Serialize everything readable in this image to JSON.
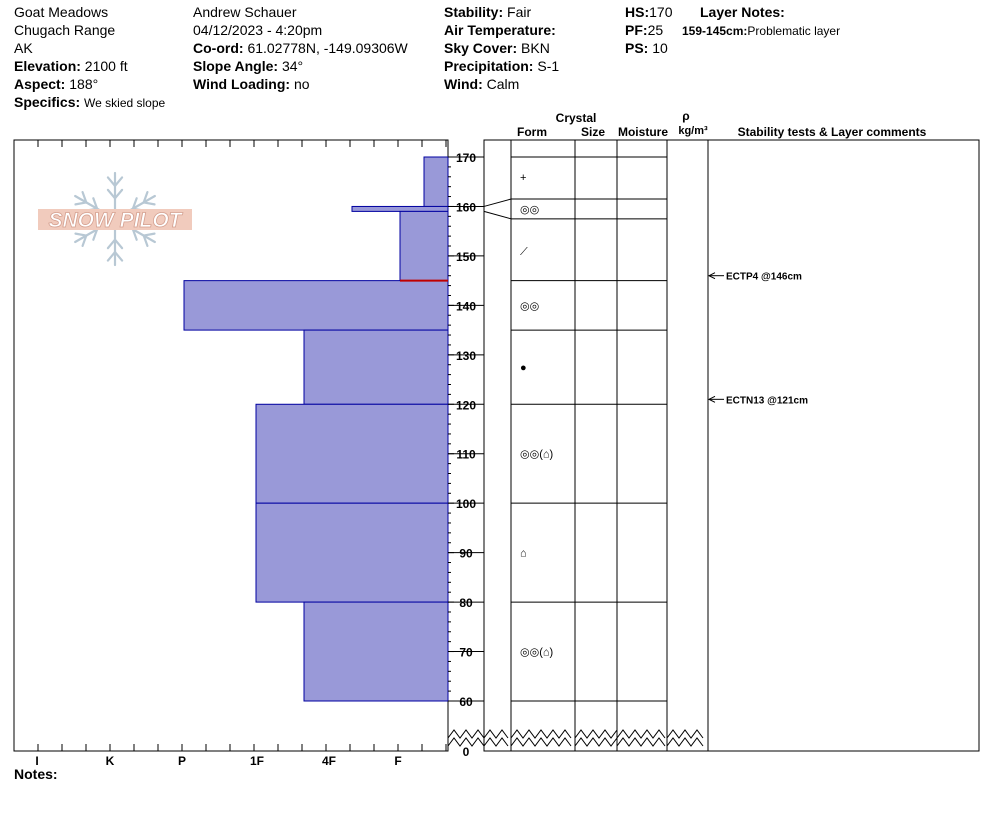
{
  "header": {
    "location": "Goat Meadows",
    "range": "Chugach Range",
    "state": "AK",
    "elevation_label": "Elevation:",
    "elevation_value": "2100 ft",
    "aspect_label": "Aspect:",
    "aspect_value": "188°",
    "specifics_label": "Specifics:",
    "specifics_value": "We skied slope",
    "observer": "Andrew Schauer",
    "datetime": "04/12/2023 - 4:20pm",
    "coord_label": "Co-ord:",
    "coord_value": "61.02778N, -149.09306W",
    "slope_label": "Slope Angle:",
    "slope_value": "34°",
    "wind_loading_label": "Wind Loading:",
    "wind_loading_value": "no",
    "stability_label": "Stability:",
    "stability_value": "Fair",
    "air_temp_label": "Air Temperature:",
    "air_temp_value": "",
    "sky_label": "Sky Cover:",
    "sky_value": "BKN",
    "precip_label": "Precipitation:",
    "precip_value": "S-1",
    "wind_label": "Wind:",
    "wind_value": "Calm",
    "hs_label": "HS:",
    "hs_value": "170",
    "pf_label": "PF:",
    "pf_value": "25",
    "ps_label": "PS:",
    "ps_value": "10",
    "layer_notes_label": "Layer Notes:",
    "layer_note_range": "159-145cm:",
    "layer_note_text": "Problematic layer",
    "notes_label": "Notes:"
  },
  "columns": {
    "crystal": "Crystal",
    "form": "Form",
    "size": "Size",
    "moisture": "Moisture",
    "rho": "ρ",
    "density_unit": "kg/m³",
    "stability_comments": "Stability tests & Layer comments"
  },
  "logo_text": "SNOW PILOT",
  "colors": {
    "layer_fill": "#9999d8",
    "layer_stroke": "#0000a0",
    "weak_layer_line": "#c00000"
  },
  "chart_data": {
    "type": "snow_profile",
    "hardness_scale": [
      "I",
      "K",
      "P",
      "1F",
      "4F",
      "F"
    ],
    "depth_ticks": [
      170,
      160,
      150,
      140,
      130,
      120,
      110,
      100,
      90,
      80,
      70,
      60,
      0
    ],
    "depth_range_cm": [
      0,
      170
    ],
    "layers": [
      {
        "top": 170,
        "bottom": 160,
        "hardness": 0.5
      },
      {
        "top": 160,
        "bottom": 159,
        "hardness": 2.0
      },
      {
        "top": 159,
        "bottom": 145,
        "hardness": 1.0
      },
      {
        "top": 145,
        "bottom": 135,
        "hardness": 5.5
      },
      {
        "top": 135,
        "bottom": 120,
        "hardness": 3.0
      },
      {
        "top": 120,
        "bottom": 100,
        "hardness": 4.0
      },
      {
        "top": 100,
        "bottom": 80,
        "hardness": 4.0
      },
      {
        "top": 80,
        "bottom": 60,
        "hardness": 3.0
      }
    ],
    "crystal_layer_boundaries": [
      170,
      161.5,
      157.5,
      145,
      135,
      120,
      100,
      80,
      60
    ],
    "crystal_forms": [
      {
        "depth": 166,
        "symbol": "+"
      },
      {
        "depth": 159.5,
        "symbol": "◎◎"
      },
      {
        "depth": 151,
        "symbol": "⟋"
      },
      {
        "depth": 140,
        "symbol": "◎◎"
      },
      {
        "depth": 127.5,
        "symbol": "●"
      },
      {
        "depth": 110,
        "symbol": "◎◎(⌂)"
      },
      {
        "depth": 90,
        "symbol": "⌂"
      },
      {
        "depth": 70,
        "symbol": "◎◎(⌂)"
      }
    ],
    "weak_layer_depth": 145,
    "stability_tests": [
      {
        "depth": 146,
        "label": "ECTP4 @146cm"
      },
      {
        "depth": 121,
        "label": "ECTN13 @121cm"
      }
    ]
  }
}
